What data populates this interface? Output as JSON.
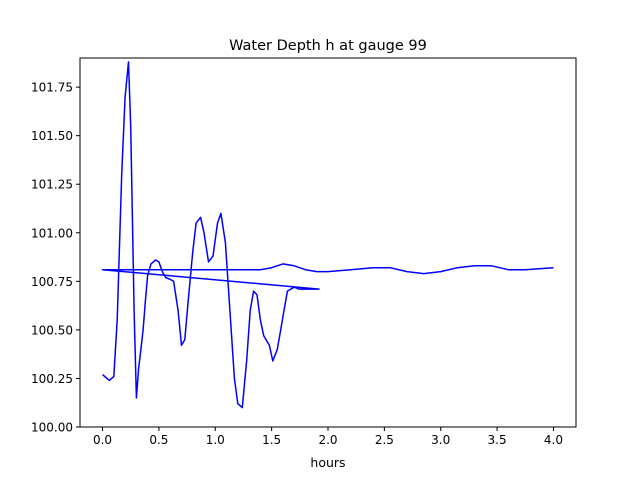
{
  "chart_data": {
    "type": "line",
    "title": "Water Depth h at gauge 99",
    "xlabel": "hours",
    "ylabel": "",
    "xlim": [
      -0.2,
      4.2
    ],
    "ylim": [
      100.0,
      101.9
    ],
    "xticks": [
      0.0,
      0.5,
      1.0,
      1.5,
      2.0,
      2.5,
      3.0,
      3.5,
      4.0
    ],
    "xtick_labels": [
      "0.0",
      "0.5",
      "1.0",
      "1.5",
      "2.0",
      "2.5",
      "3.0",
      "3.5",
      "4.0"
    ],
    "yticks": [
      100.0,
      100.25,
      100.5,
      100.75,
      101.0,
      101.25,
      101.5,
      101.75
    ],
    "ytick_labels": [
      "100.00",
      "100.25",
      "100.50",
      "100.75",
      "101.00",
      "101.25",
      "101.50",
      "101.75"
    ],
    "grid": false,
    "series": [
      {
        "color": "#0000ff",
        "x": [
          0.0,
          0.02,
          0.06,
          0.1,
          0.13,
          0.17,
          0.2,
          0.23,
          0.25,
          0.28,
          0.3,
          0.32,
          0.34,
          0.36,
          0.38,
          0.4,
          0.43,
          0.47,
          0.5,
          0.53,
          0.56,
          0.6,
          0.63,
          0.67,
          0.7,
          0.73,
          0.76,
          0.8,
          0.83,
          0.87,
          0.9,
          0.94,
          0.98,
          1.02,
          1.05,
          1.09,
          1.13,
          1.17,
          1.2,
          1.24,
          1.28,
          1.31,
          1.34,
          1.37,
          1.4,
          1.43,
          1.46,
          1.48,
          1.51,
          1.55,
          1.58,
          1.61,
          1.64,
          1.67,
          1.7,
          1.74,
          1.77,
          1.8,
          1.83,
          1.87,
          1.9,
          1.92,
          0.0,
          0.0,
          0.3,
          1.0,
          1.4,
          1.5,
          1.6,
          1.7,
          1.8,
          1.9,
          2.0,
          2.2,
          2.4,
          2.55,
          2.7,
          2.85,
          3.0,
          3.15,
          3.3,
          3.45,
          3.6,
          3.75,
          4.0
        ],
        "y": [
          100.27,
          100.26,
          100.24,
          100.26,
          100.55,
          101.3,
          101.7,
          101.88,
          101.55,
          100.6,
          100.15,
          100.3,
          100.4,
          100.5,
          100.65,
          100.78,
          100.84,
          100.86,
          100.85,
          100.8,
          100.77,
          100.76,
          100.75,
          100.6,
          100.42,
          100.45,
          100.65,
          100.9,
          101.05,
          101.08,
          101.0,
          100.85,
          100.88,
          101.05,
          101.1,
          100.95,
          100.6,
          100.25,
          100.12,
          100.1,
          100.35,
          100.6,
          100.7,
          100.68,
          100.55,
          100.47,
          100.44,
          100.42,
          100.34,
          100.4,
          100.5,
          100.6,
          100.7,
          100.71,
          100.72,
          100.71,
          100.71,
          100.71,
          100.71,
          100.71,
          100.71,
          100.71,
          100.81,
          100.81,
          100.81,
          100.81,
          100.81,
          100.82,
          100.84,
          100.83,
          100.81,
          100.8,
          100.8,
          100.81,
          100.82,
          100.82,
          100.8,
          100.79,
          100.8,
          100.82,
          100.83,
          100.83,
          100.81,
          100.81,
          100.82
        ]
      }
    ]
  }
}
